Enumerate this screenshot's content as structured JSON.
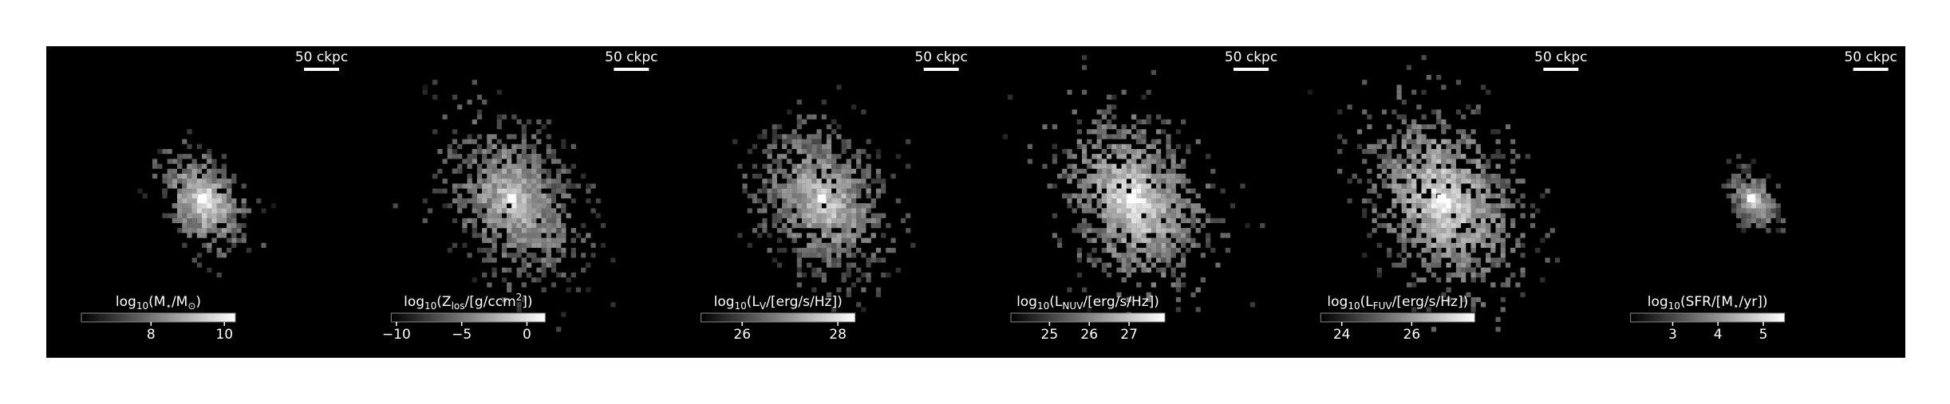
{
  "panels": [
    {
      "scale_label": "50 ckpc",
      "colorbar": {
        "label": [
          "log",
          {
            "sub": "10"
          },
          "(M",
          {
            "sub": "⋆"
          },
          "/M",
          {
            "sub": "⊙"
          },
          ")"
        ],
        "lim": [
          6.1,
          10.3
        ],
        "ticks": [
          8,
          10
        ]
      }
    },
    {
      "scale_label": "50 ckpc",
      "colorbar": {
        "label": [
          "log",
          {
            "sub": "10"
          },
          "(Z",
          {
            "sub": "los"
          },
          "/[g/ccm",
          {
            "sup": "2"
          },
          "])"
        ],
        "lim": [
          -10.4,
          1.4
        ],
        "ticks": [
          {
            "value": -10,
            "label": "−10"
          },
          {
            "value": -5,
            "label": "−5"
          },
          0
        ]
      }
    },
    {
      "scale_label": "50 ckpc",
      "colorbar": {
        "label": [
          "log",
          {
            "sub": "10"
          },
          "(L",
          {
            "sub": "V"
          },
          "/[erg/s/Hz])"
        ],
        "lim": [
          25.14,
          28.36
        ],
        "ticks": [
          26,
          28
        ]
      }
    },
    {
      "scale_label": "50 ckpc",
      "colorbar": {
        "label": [
          "log",
          {
            "sub": "10"
          },
          "(L",
          {
            "sub": "NUV"
          },
          "/[erg/s/Hz])"
        ],
        "lim": [
          24.03,
          27.9
        ],
        "ticks": [
          25,
          26,
          27
        ]
      }
    },
    {
      "scale_label": "50 ckpc",
      "colorbar": {
        "label": [
          "log",
          {
            "sub": "10"
          },
          "(L",
          {
            "sub": "FUV"
          },
          "/[erg/s/Hz])"
        ],
        "lim": [
          23.4,
          27.8
        ],
        "ticks": [
          24,
          26
        ]
      }
    },
    {
      "scale_label": "50 ckpc",
      "colorbar": {
        "label": [
          "log",
          {
            "sub": "10"
          },
          "(SFR/[M",
          {
            "sub": "⋆"
          },
          "/yr])"
        ],
        "lim": [
          2.07,
          5.47
        ],
        "ticks": [
          3,
          4,
          5
        ]
      }
    }
  ]
}
